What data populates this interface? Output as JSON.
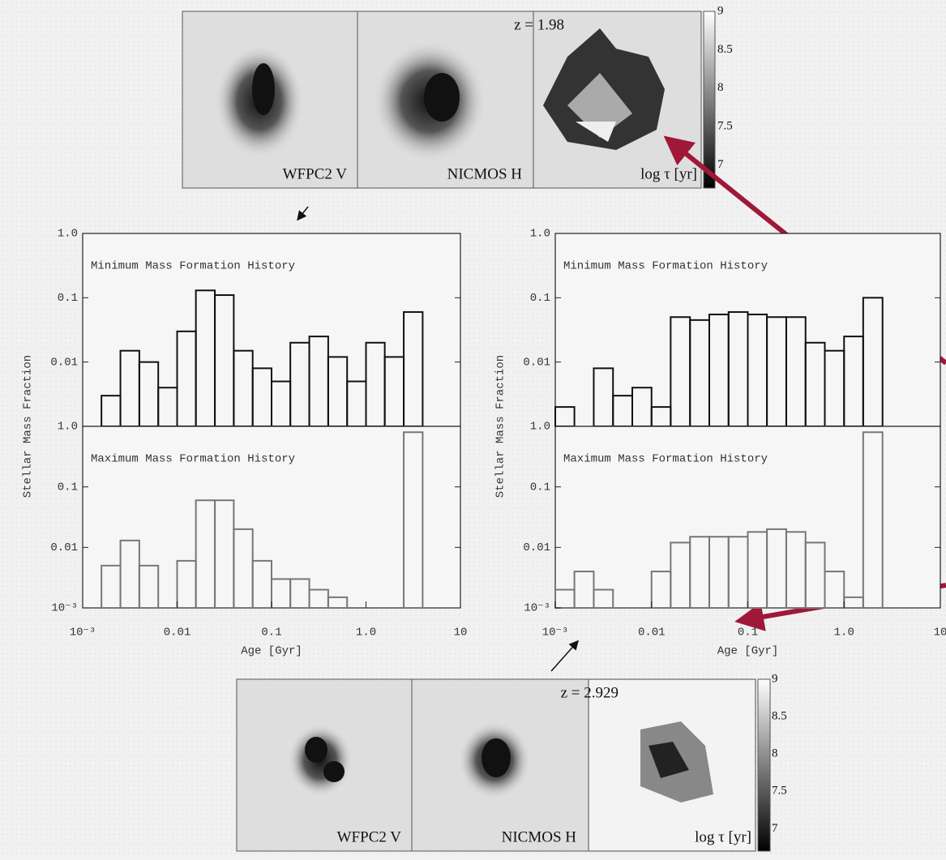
{
  "chart_data": [
    {
      "type": "histogram",
      "title": "Minimum Mass Formation History",
      "ylabel": "Stellar Mass Fraction",
      "color": "#111111",
      "log_x": true,
      "log_y": true,
      "xlim": [
        0.001,
        10
      ],
      "ylim": [
        0.001,
        1
      ],
      "yticks": [
        0.01,
        0.1,
        {
          "value": 1,
          "label": "1.0"
        }
      ],
      "bins": [
        0.001,
        0.00158,
        0.00251,
        0.00398,
        0.00631,
        0.01,
        0.0158,
        0.0251,
        0.0398,
        0.0631,
        0.1,
        0.158,
        0.251,
        0.398,
        0.631,
        1,
        1.58,
        2.51,
        3.98,
        6.31,
        10
      ],
      "values": [
        0.001,
        0.003,
        0.015,
        0.01,
        0.004,
        0.03,
        0.13,
        0.11,
        0.015,
        0.008,
        0.005,
        0.02,
        0.025,
        0.012,
        0.005,
        0.02,
        0.012,
        0.06,
        0.001,
        0.001
      ]
    },
    {
      "type": "histogram",
      "title": "Maximum Mass Formation History",
      "xlabel": "Age [Gyr]",
      "color": "#777777",
      "log_x": true,
      "log_y": true,
      "xlim": [
        0.001,
        10
      ],
      "ylim": [
        0.001,
        1
      ],
      "xticks": [
        {
          "value": 0.001,
          "label": "10⁻³"
        },
        0.01,
        0.1,
        {
          "value": 1,
          "label": "1.0"
        },
        10
      ],
      "yticks": [
        {
          "value": 0.001,
          "label": "10⁻³"
        },
        0.01,
        0.1,
        {
          "value": 1,
          "label": "1.0"
        }
      ],
      "bins": [
        0.001,
        0.00158,
        0.00251,
        0.00398,
        0.00631,
        0.01,
        0.0158,
        0.0251,
        0.0398,
        0.0631,
        0.1,
        0.158,
        0.251,
        0.398,
        0.631,
        1,
        1.58,
        2.51,
        3.98,
        6.31,
        10
      ],
      "values": [
        0.001,
        0.005,
        0.013,
        0.005,
        0.001,
        0.006,
        0.06,
        0.06,
        0.02,
        0.006,
        0.003,
        0.003,
        0.002,
        0.0015,
        0.001,
        0.001,
        0.001,
        0.8,
        0.001,
        0.001
      ]
    },
    {
      "type": "histogram",
      "title": "Minimum Mass Formation History",
      "ylabel": "Stellar Mass Fraction",
      "color": "#111111",
      "log_x": true,
      "log_y": true,
      "xlim": [
        0.001,
        10
      ],
      "ylim": [
        0.001,
        1
      ],
      "yticks": [
        0.01,
        0.1,
        {
          "value": 1,
          "label": "1.0"
        }
      ],
      "bins": [
        0.001,
        0.00158,
        0.00251,
        0.00398,
        0.00631,
        0.01,
        0.0158,
        0.0251,
        0.0398,
        0.0631,
        0.1,
        0.158,
        0.251,
        0.398,
        0.631,
        1,
        1.58,
        2.51,
        3.98,
        6.31,
        10
      ],
      "values": [
        0.002,
        0.001,
        0.008,
        0.003,
        0.004,
        0.002,
        0.05,
        0.045,
        0.055,
        0.06,
        0.055,
        0.05,
        0.05,
        0.02,
        0.015,
        0.025,
        0.1,
        0.001,
        0.001,
        0.001
      ]
    },
    {
      "type": "histogram",
      "title": "Maximum Mass Formation History",
      "xlabel": "Age [Gyr]",
      "color": "#777777",
      "log_x": true,
      "log_y": true,
      "xlim": [
        0.001,
        10
      ],
      "ylim": [
        0.001,
        1
      ],
      "xticks": [
        {
          "value": 0.001,
          "label": "10⁻³"
        },
        0.01,
        0.1,
        {
          "value": 1,
          "label": "1.0"
        },
        10
      ],
      "yticks": [
        {
          "value": 0.001,
          "label": "10⁻³"
        },
        0.01,
        0.1,
        {
          "value": 1,
          "label": "1.0"
        }
      ],
      "bins": [
        0.001,
        0.00158,
        0.00251,
        0.00398,
        0.00631,
        0.01,
        0.0158,
        0.0251,
        0.0398,
        0.0631,
        0.1,
        0.158,
        0.251,
        0.398,
        0.631,
        1,
        1.58,
        2.51,
        3.98,
        6.31,
        10
      ],
      "values": [
        0.002,
        0.004,
        0.002,
        0.001,
        0.001,
        0.004,
        0.012,
        0.015,
        0.015,
        0.015,
        0.018,
        0.02,
        0.018,
        0.012,
        0.004,
        0.0015,
        0.8,
        0.001,
        0.001,
        0.001
      ]
    }
  ],
  "images": [
    {
      "redshift": "z = 1.98",
      "panels": [
        "WFPC2 V",
        "NICMOS H",
        "log τ [yr]"
      ],
      "colorbar_ticks": [
        9,
        8.5,
        8,
        7.5,
        7
      ]
    },
    {
      "redshift": "z = 2.929",
      "panels": [
        "WFPC2 V",
        "NICMOS H",
        "log τ [yr]"
      ],
      "colorbar_ticks": [
        9,
        8.5,
        8,
        7.5,
        7
      ]
    }
  ]
}
